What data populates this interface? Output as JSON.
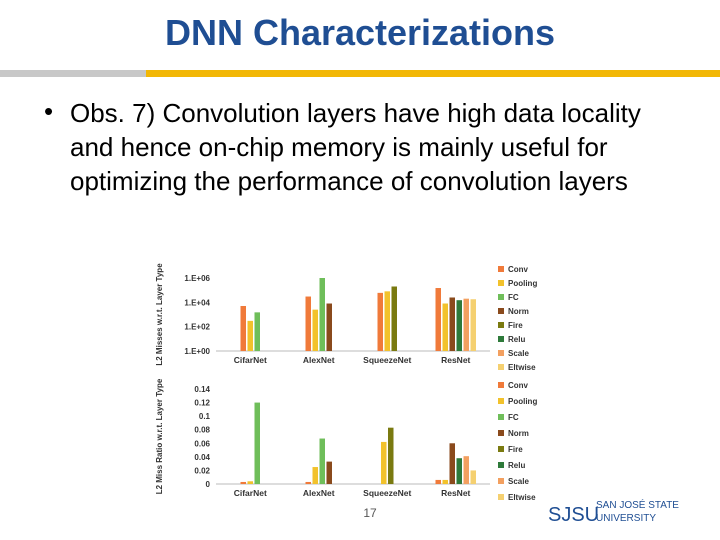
{
  "slide": {
    "title": "DNN Characterizations",
    "bullet_marker": "•",
    "bullet": "Obs. 7) Convolution layers have high data locality and hence on-chip memory is mainly useful for optimizing the performance of convolution layers",
    "page_number": "17",
    "logo": {
      "abbr": "SJSU",
      "line1": "SAN JOSÉ STATE",
      "line2": "UNIVERSITY"
    }
  },
  "colors": {
    "title": "#1f4e93",
    "rule_gray": "#c8c8c8",
    "rule_gold": "#f2b705",
    "series": [
      "#f07a3a",
      "#f2c22c",
      "#6fbe5a",
      "#8a4a1c",
      "#7a7a10",
      "#2e7a3a",
      "#f3a060",
      "#f5d070"
    ]
  },
  "chart_data": [
    {
      "type": "bar",
      "ylabel": "L2 Misses w.r.t. Layer Type",
      "yscale": "log",
      "ylim": [
        1,
        1000000
      ],
      "yticks": [
        "1.E+00",
        "1.E+02",
        "1.E+04",
        "1.E+06"
      ],
      "categories": [
        "CifarNet",
        "AlexNet",
        "SqueezeNet",
        "ResNet"
      ],
      "series": [
        {
          "name": "Conv",
          "values": [
            5000,
            30000,
            60000,
            150000
          ]
        },
        {
          "name": "Pooling",
          "values": [
            300,
            2500,
            80000,
            8000
          ]
        },
        {
          "name": "FC",
          "values": [
            1500,
            1000000,
            null,
            null
          ]
        },
        {
          "name": "Norm",
          "values": [
            null,
            8000,
            null,
            25000
          ]
        },
        {
          "name": "Fire",
          "values": [
            null,
            null,
            200000,
            null
          ]
        },
        {
          "name": "Relu",
          "values": [
            null,
            null,
            null,
            15000
          ]
        },
        {
          "name": "Scale",
          "values": [
            null,
            null,
            null,
            20000
          ]
        },
        {
          "name": "Eltwise",
          "values": [
            null,
            null,
            null,
            18000
          ]
        }
      ],
      "legend": "right"
    },
    {
      "type": "bar",
      "ylabel": "L2 Miss Ratio w.r.t. Layer Type",
      "ylim": [
        0,
        0.14
      ],
      "yticks": [
        "0",
        "0.02",
        "0.04",
        "0.06",
        "0.08",
        "0.1",
        "0.12",
        "0.14"
      ],
      "categories": [
        "CifarNet",
        "AlexNet",
        "SqueezeNet",
        "ResNet"
      ],
      "series": [
        {
          "name": "Conv",
          "values": [
            0.003,
            0.003,
            null,
            0.006
          ]
        },
        {
          "name": "Pooling",
          "values": [
            0.004,
            0.025,
            0.062,
            0.006
          ]
        },
        {
          "name": "FC",
          "values": [
            0.12,
            0.067,
            null,
            null
          ]
        },
        {
          "name": "Norm",
          "values": [
            null,
            0.033,
            null,
            0.06
          ]
        },
        {
          "name": "Fire",
          "values": [
            null,
            null,
            0.083,
            null
          ]
        },
        {
          "name": "Relu",
          "values": [
            null,
            null,
            null,
            0.038
          ]
        },
        {
          "name": "Scale",
          "values": [
            null,
            null,
            null,
            0.041
          ]
        },
        {
          "name": "Eltwise",
          "values": [
            null,
            null,
            null,
            0.02
          ]
        }
      ],
      "legend": "right"
    }
  ]
}
